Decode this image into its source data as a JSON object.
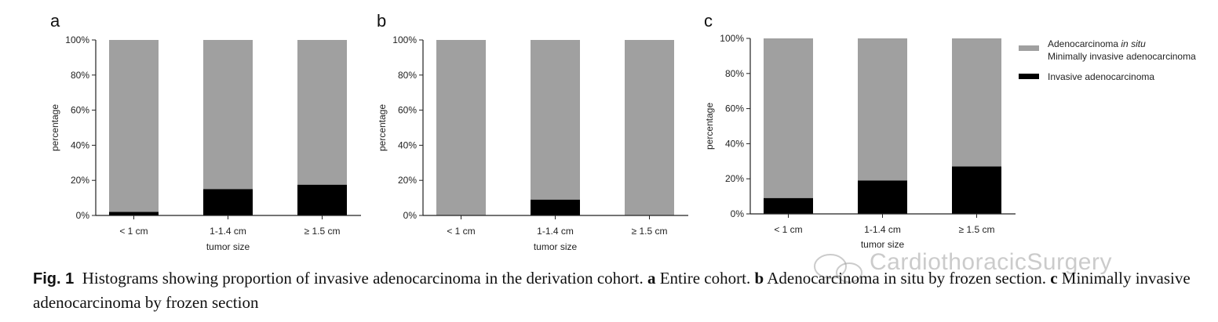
{
  "colors": {
    "non_invasive": "#a0a0a0",
    "invasive": "#000000",
    "axis": "#222222"
  },
  "legend": {
    "line1_prefix": "Adenocarcinoma ",
    "line1_italic": "in situ",
    "line2": "Minimally invasive adenocarcinoma",
    "line3": "Invasive adenocarcinoma"
  },
  "chart_data": [
    {
      "type": "bar",
      "stacked": true,
      "panel_label": "a",
      "categories": [
        "< 1 cm",
        "1-1.4 cm",
        "≥ 1.5 cm"
      ],
      "series": [
        {
          "name": "Invasive adenocarcinoma",
          "values": [
            2,
            15,
            17.5
          ]
        },
        {
          "name": "Adenocarcinoma in situ / Minimally invasive adenocarcinoma",
          "values": [
            98,
            85,
            82.5
          ]
        }
      ],
      "ylabel": "percentage",
      "xlabel": "tumor size",
      "yticks": [
        "0%",
        "20%",
        "40%",
        "60%",
        "80%",
        "100%"
      ],
      "ylim": [
        0,
        100
      ]
    },
    {
      "type": "bar",
      "stacked": true,
      "panel_label": "b",
      "categories": [
        "< 1 cm",
        "1-1.4 cm",
        "≥ 1.5 cm"
      ],
      "series": [
        {
          "name": "Invasive adenocarcinoma",
          "values": [
            0,
            9,
            0
          ]
        },
        {
          "name": "Adenocarcinoma in situ / Minimally invasive adenocarcinoma",
          "values": [
            100,
            91,
            100
          ]
        }
      ],
      "ylabel": "percentage",
      "xlabel": "tumor size",
      "yticks": [
        "0%",
        "20%",
        "40%",
        "60%",
        "80%",
        "100%"
      ],
      "ylim": [
        0,
        100
      ]
    },
    {
      "type": "bar",
      "stacked": true,
      "panel_label": "c",
      "categories": [
        "< 1 cm",
        "1-1.4 cm",
        "≥ 1.5 cm"
      ],
      "series": [
        {
          "name": "Invasive adenocarcinoma",
          "values": [
            9,
            19,
            27
          ]
        },
        {
          "name": "Adenocarcinoma in situ / Minimally invasive adenocarcinoma",
          "values": [
            91,
            81,
            73
          ]
        }
      ],
      "ylabel": "percentage",
      "xlabel": "tumor size",
      "yticks": [
        "0%",
        "20%",
        "40%",
        "60%",
        "80%",
        "100%"
      ],
      "ylim": [
        0,
        100
      ]
    }
  ],
  "caption": {
    "fig_label": "Fig. 1",
    "text1": "Histograms showing proportion of invasive adenocarcinoma in the derivation cohort. ",
    "a_label": "a",
    "a_text": " Entire cohort. ",
    "b_label": "b",
    "b_text": " Adenocarcinoma in situ by frozen section. ",
    "c_label": "c",
    "c_text": " Minimally invasive adenocarcinoma by frozen section"
  },
  "watermark": {
    "text": "CardiothoracicSurgery"
  }
}
